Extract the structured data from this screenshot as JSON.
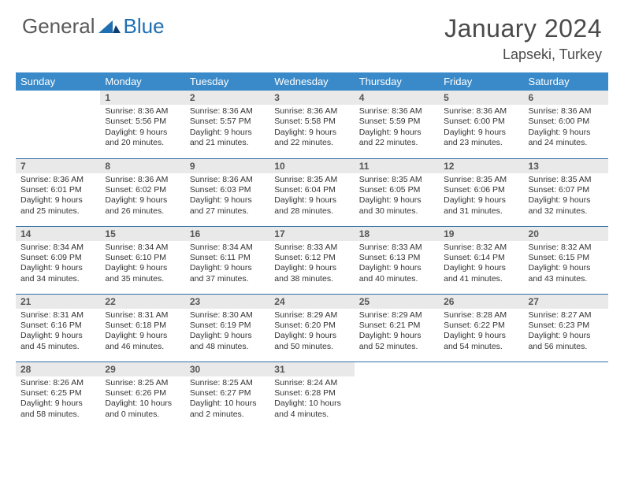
{
  "brand": {
    "word1": "General",
    "word2": "Blue"
  },
  "title": "January 2024",
  "location": "Lapseki, Turkey",
  "colors": {
    "header_bg": "#3a8ac9",
    "header_text": "#ffffff",
    "daynum_bg": "#e9e9e9",
    "daynum_text": "#555555",
    "body_text": "#333333",
    "rule": "#2f6fa8",
    "brand_gray": "#5a5a5a",
    "brand_blue": "#1f6fb2"
  },
  "weekdays": [
    "Sunday",
    "Monday",
    "Tuesday",
    "Wednesday",
    "Thursday",
    "Friday",
    "Saturday"
  ],
  "weeks": [
    [
      {
        "n": "",
        "l1": "",
        "l2": "",
        "l3": "",
        "l4": "",
        "empty": true
      },
      {
        "n": "1",
        "l1": "Sunrise: 8:36 AM",
        "l2": "Sunset: 5:56 PM",
        "l3": "Daylight: 9 hours",
        "l4": "and 20 minutes."
      },
      {
        "n": "2",
        "l1": "Sunrise: 8:36 AM",
        "l2": "Sunset: 5:57 PM",
        "l3": "Daylight: 9 hours",
        "l4": "and 21 minutes."
      },
      {
        "n": "3",
        "l1": "Sunrise: 8:36 AM",
        "l2": "Sunset: 5:58 PM",
        "l3": "Daylight: 9 hours",
        "l4": "and 22 minutes."
      },
      {
        "n": "4",
        "l1": "Sunrise: 8:36 AM",
        "l2": "Sunset: 5:59 PM",
        "l3": "Daylight: 9 hours",
        "l4": "and 22 minutes."
      },
      {
        "n": "5",
        "l1": "Sunrise: 8:36 AM",
        "l2": "Sunset: 6:00 PM",
        "l3": "Daylight: 9 hours",
        "l4": "and 23 minutes."
      },
      {
        "n": "6",
        "l1": "Sunrise: 8:36 AM",
        "l2": "Sunset: 6:00 PM",
        "l3": "Daylight: 9 hours",
        "l4": "and 24 minutes."
      }
    ],
    [
      {
        "n": "7",
        "l1": "Sunrise: 8:36 AM",
        "l2": "Sunset: 6:01 PM",
        "l3": "Daylight: 9 hours",
        "l4": "and 25 minutes."
      },
      {
        "n": "8",
        "l1": "Sunrise: 8:36 AM",
        "l2": "Sunset: 6:02 PM",
        "l3": "Daylight: 9 hours",
        "l4": "and 26 minutes."
      },
      {
        "n": "9",
        "l1": "Sunrise: 8:36 AM",
        "l2": "Sunset: 6:03 PM",
        "l3": "Daylight: 9 hours",
        "l4": "and 27 minutes."
      },
      {
        "n": "10",
        "l1": "Sunrise: 8:35 AM",
        "l2": "Sunset: 6:04 PM",
        "l3": "Daylight: 9 hours",
        "l4": "and 28 minutes."
      },
      {
        "n": "11",
        "l1": "Sunrise: 8:35 AM",
        "l2": "Sunset: 6:05 PM",
        "l3": "Daylight: 9 hours",
        "l4": "and 30 minutes."
      },
      {
        "n": "12",
        "l1": "Sunrise: 8:35 AM",
        "l2": "Sunset: 6:06 PM",
        "l3": "Daylight: 9 hours",
        "l4": "and 31 minutes."
      },
      {
        "n": "13",
        "l1": "Sunrise: 8:35 AM",
        "l2": "Sunset: 6:07 PM",
        "l3": "Daylight: 9 hours",
        "l4": "and 32 minutes."
      }
    ],
    [
      {
        "n": "14",
        "l1": "Sunrise: 8:34 AM",
        "l2": "Sunset: 6:09 PM",
        "l3": "Daylight: 9 hours",
        "l4": "and 34 minutes."
      },
      {
        "n": "15",
        "l1": "Sunrise: 8:34 AM",
        "l2": "Sunset: 6:10 PM",
        "l3": "Daylight: 9 hours",
        "l4": "and 35 minutes."
      },
      {
        "n": "16",
        "l1": "Sunrise: 8:34 AM",
        "l2": "Sunset: 6:11 PM",
        "l3": "Daylight: 9 hours",
        "l4": "and 37 minutes."
      },
      {
        "n": "17",
        "l1": "Sunrise: 8:33 AM",
        "l2": "Sunset: 6:12 PM",
        "l3": "Daylight: 9 hours",
        "l4": "and 38 minutes."
      },
      {
        "n": "18",
        "l1": "Sunrise: 8:33 AM",
        "l2": "Sunset: 6:13 PM",
        "l3": "Daylight: 9 hours",
        "l4": "and 40 minutes."
      },
      {
        "n": "19",
        "l1": "Sunrise: 8:32 AM",
        "l2": "Sunset: 6:14 PM",
        "l3": "Daylight: 9 hours",
        "l4": "and 41 minutes."
      },
      {
        "n": "20",
        "l1": "Sunrise: 8:32 AM",
        "l2": "Sunset: 6:15 PM",
        "l3": "Daylight: 9 hours",
        "l4": "and 43 minutes."
      }
    ],
    [
      {
        "n": "21",
        "l1": "Sunrise: 8:31 AM",
        "l2": "Sunset: 6:16 PM",
        "l3": "Daylight: 9 hours",
        "l4": "and 45 minutes."
      },
      {
        "n": "22",
        "l1": "Sunrise: 8:31 AM",
        "l2": "Sunset: 6:18 PM",
        "l3": "Daylight: 9 hours",
        "l4": "and 46 minutes."
      },
      {
        "n": "23",
        "l1": "Sunrise: 8:30 AM",
        "l2": "Sunset: 6:19 PM",
        "l3": "Daylight: 9 hours",
        "l4": "and 48 minutes."
      },
      {
        "n": "24",
        "l1": "Sunrise: 8:29 AM",
        "l2": "Sunset: 6:20 PM",
        "l3": "Daylight: 9 hours",
        "l4": "and 50 minutes."
      },
      {
        "n": "25",
        "l1": "Sunrise: 8:29 AM",
        "l2": "Sunset: 6:21 PM",
        "l3": "Daylight: 9 hours",
        "l4": "and 52 minutes."
      },
      {
        "n": "26",
        "l1": "Sunrise: 8:28 AM",
        "l2": "Sunset: 6:22 PM",
        "l3": "Daylight: 9 hours",
        "l4": "and 54 minutes."
      },
      {
        "n": "27",
        "l1": "Sunrise: 8:27 AM",
        "l2": "Sunset: 6:23 PM",
        "l3": "Daylight: 9 hours",
        "l4": "and 56 minutes."
      }
    ],
    [
      {
        "n": "28",
        "l1": "Sunrise: 8:26 AM",
        "l2": "Sunset: 6:25 PM",
        "l3": "Daylight: 9 hours",
        "l4": "and 58 minutes."
      },
      {
        "n": "29",
        "l1": "Sunrise: 8:25 AM",
        "l2": "Sunset: 6:26 PM",
        "l3": "Daylight: 10 hours",
        "l4": "and 0 minutes."
      },
      {
        "n": "30",
        "l1": "Sunrise: 8:25 AM",
        "l2": "Sunset: 6:27 PM",
        "l3": "Daylight: 10 hours",
        "l4": "and 2 minutes."
      },
      {
        "n": "31",
        "l1": "Sunrise: 8:24 AM",
        "l2": "Sunset: 6:28 PM",
        "l3": "Daylight: 10 hours",
        "l4": "and 4 minutes."
      },
      {
        "n": "",
        "l1": "",
        "l2": "",
        "l3": "",
        "l4": "",
        "empty": true
      },
      {
        "n": "",
        "l1": "",
        "l2": "",
        "l3": "",
        "l4": "",
        "empty": true
      },
      {
        "n": "",
        "l1": "",
        "l2": "",
        "l3": "",
        "l4": "",
        "empty": true
      }
    ]
  ]
}
